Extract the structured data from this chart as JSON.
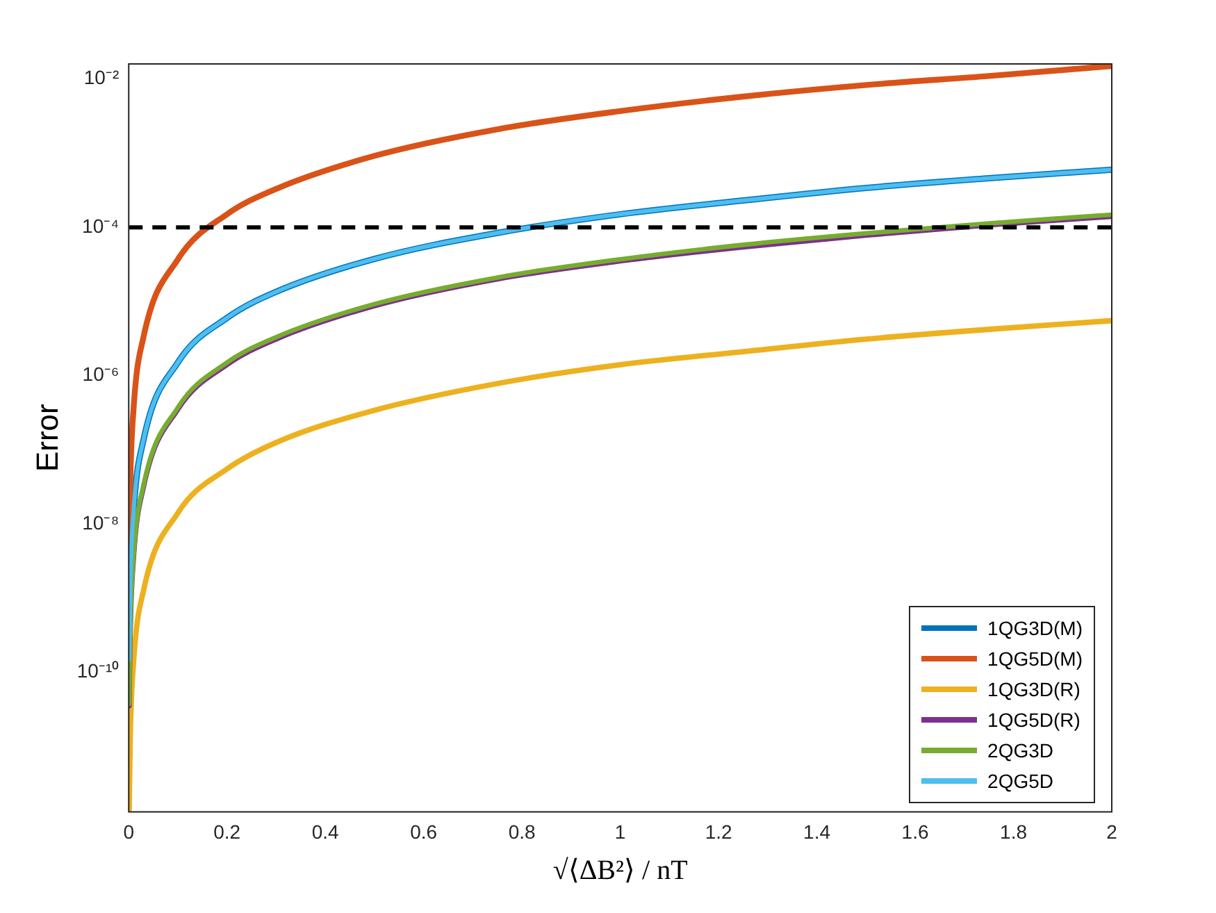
{
  "chart_data": {
    "type": "line",
    "xlabel": "√⟨ΔB²⟩ / nT",
    "ylabel": "Error",
    "log": "y",
    "grid": false,
    "legend": "bottom right",
    "marker": "none",
    "line_style": "solid",
    "xlim": [
      0,
      2
    ],
    "xticks": [
      0,
      0.2,
      0.4,
      0.6,
      0.8,
      1,
      1.2,
      1.4,
      1.6,
      1.8,
      2
    ],
    "ylim": [
      1.3e-12,
      0.016
    ],
    "yticks": [
      {
        "value": 1e-10,
        "label": "10⁻¹⁰"
      },
      {
        "value": 1e-08,
        "label": "10⁻⁸"
      },
      {
        "value": 1e-06,
        "label": "10⁻⁶"
      },
      {
        "value": 0.0001,
        "label": "10⁻⁴"
      },
      {
        "value": 0.01,
        "label": "10⁻²"
      }
    ],
    "x": [
      0.001,
      0.003,
      0.01,
      0.03,
      0.1,
      0.2,
      0.3,
      0.5,
      0.75,
      1,
      1.25,
      1.5,
      1.75,
      2
    ],
    "series": [
      {
        "name": "1QG3D(M)",
        "color": "#0072bd",
        "values": [
          1.5e-10,
          1.35e-09,
          1.5e-08,
          1.35e-07,
          1.5e-06,
          6e-06,
          1.35e-05,
          3.75e-05,
          8.4e-05,
          0.00015,
          0.00023,
          0.00034,
          0.00046,
          0.0006
        ]
      },
      {
        "name": "1QG5D(M)",
        "color": "#d95319",
        "values": [
          3.7e-09,
          3.3e-08,
          3.7e-07,
          3.3e-06,
          3.7e-05,
          0.00015,
          0.00033,
          0.00092,
          0.0021,
          0.0037,
          0.0058,
          0.0083,
          0.011,
          0.015
        ]
      },
      {
        "name": "1QG3D(R)",
        "color": "#edb120",
        "values": [
          1.4e-12,
          1.25e-11,
          1.4e-10,
          1.25e-09,
          1.4e-08,
          5.5e-08,
          1.25e-07,
          3.4e-07,
          7.8e-07,
          1.4e-06,
          2.1e-06,
          3.1e-06,
          4.2e-06,
          5.5e-06
        ]
      },
      {
        "name": "1QG5D(R)",
        "color": "#7e2f8e",
        "values": [
          3.5e-11,
          3.1e-10,
          3.5e-09,
          3.1e-08,
          3.5e-07,
          1.4e-06,
          3.1e-06,
          8.7e-06,
          2e-05,
          3.5e-05,
          5.4e-05,
          7.8e-05,
          0.000107,
          0.00014
        ]
      },
      {
        "name": "2QG3D",
        "color": "#77ac30",
        "values": [
          3.7e-11,
          3.3e-10,
          3.7e-09,
          3.3e-08,
          3.7e-07,
          1.5e-06,
          3.3e-06,
          9.2e-06,
          2.1e-05,
          3.7e-05,
          5.8e-05,
          8.3e-05,
          0.000113,
          0.000148
        ]
      },
      {
        "name": "2QG5D",
        "color": "#4dbeee",
        "values": [
          1.5e-10,
          1.35e-09,
          1.5e-08,
          1.35e-07,
          1.5e-06,
          6e-06,
          1.35e-05,
          3.75e-05,
          8.4e-05,
          0.00015,
          0.00023,
          0.00034,
          0.00046,
          0.0006
        ]
      }
    ],
    "ref_lines": [
      {
        "axis": "y",
        "value": 0.0001,
        "color": "#000000",
        "line_style": "dashed"
      }
    ]
  }
}
